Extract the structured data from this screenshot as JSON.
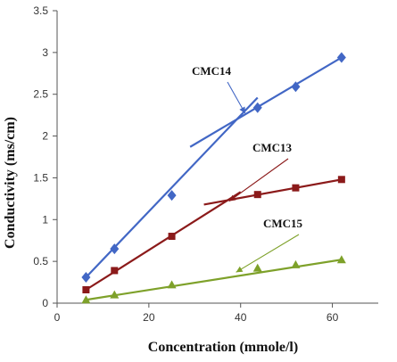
{
  "chart_data": {
    "type": "scatter",
    "xlabel": "Concentration (mmole/l)",
    "ylabel": "Conductivity  (ms/cm)",
    "xlim": [
      0,
      70
    ],
    "ylim": [
      0,
      3.5
    ],
    "xticks": [
      "0",
      "20",
      "40",
      "60"
    ],
    "yticks": [
      "0",
      "0.5",
      "1",
      "1.5",
      "2",
      "2.5",
      "3",
      "3.5"
    ],
    "grid": false,
    "legend": "none",
    "series": [
      {
        "name": "CMC14",
        "color": "#4267c5",
        "marker": "diamond",
        "x": [
          6.3,
          12.5,
          25,
          43.7,
          52,
          62
        ],
        "y": [
          0.31,
          0.65,
          1.29,
          2.34,
          2.59,
          2.94
        ],
        "fit_lines": [
          {
            "x": [
              6.3,
              43.7
            ],
            "y": [
              0.31,
              2.46
            ]
          },
          {
            "x": [
              29,
              62
            ],
            "y": [
              1.87,
              2.94
            ]
          }
        ]
      },
      {
        "name": "CMC13",
        "color": "#8b1a1a",
        "marker": "square",
        "x": [
          6.3,
          12.5,
          25,
          43.7,
          52,
          62
        ],
        "y": [
          0.16,
          0.39,
          0.8,
          1.3,
          1.38,
          1.48
        ],
        "fit_lines": [
          {
            "x": [
              6.3,
              40
            ],
            "y": [
              0.16,
              1.33
            ]
          },
          {
            "x": [
              32,
              62
            ],
            "y": [
              1.18,
              1.48
            ]
          }
        ]
      },
      {
        "name": "CMC15",
        "color": "#7ea12a",
        "marker": "triangle",
        "x": [
          6.3,
          12.5,
          25,
          43.7,
          52,
          62
        ],
        "y": [
          0.04,
          0.1,
          0.22,
          0.42,
          0.46,
          0.52
        ],
        "fit_lines": [
          {
            "x": [
              6.3,
              62
            ],
            "y": [
              0.04,
              0.52
            ]
          }
        ]
      }
    ],
    "annotations": [
      {
        "text": "CMC14",
        "arrow_to": [
          41,
          2.27
        ],
        "color": "#4267c5"
      },
      {
        "text": "CMC13",
        "arrow_to": [
          37.5,
          1.22
        ],
        "color": "#8b1a1a"
      },
      {
        "text": "CMC15",
        "arrow_to": [
          39,
          0.37
        ],
        "color": "#7ea12a"
      }
    ]
  }
}
